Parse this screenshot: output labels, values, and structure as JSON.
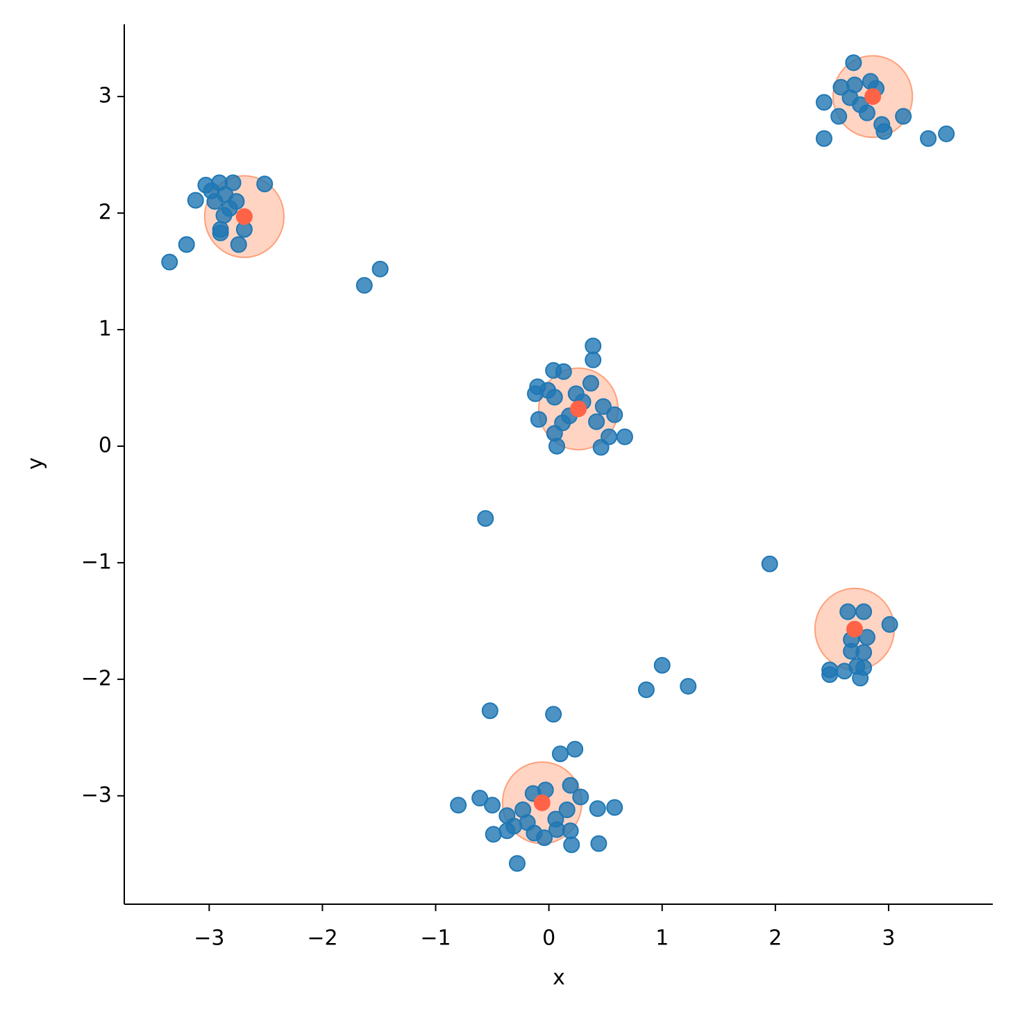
{
  "chart_data": {
    "type": "scatter",
    "xlabel": "x",
    "ylabel": "y",
    "xlim": [
      -3.75,
      3.92
    ],
    "ylim": [
      -3.93,
      3.62
    ],
    "xticks": [
      {
        "value": -3,
        "label": "−3"
      },
      {
        "value": -2,
        "label": "−2"
      },
      {
        "value": -1,
        "label": "−1"
      },
      0,
      1,
      2,
      3
    ],
    "yticks": [
      {
        "value": -3,
        "label": "−3"
      },
      {
        "value": -2,
        "label": "−2"
      },
      {
        "value": -1,
        "label": "−1"
      },
      0,
      1,
      2,
      3
    ],
    "series": [
      {
        "color": "#1f77b4",
        "x": [
          -3.35,
          -3.2,
          -3.12,
          -3.03,
          -2.91,
          -2.79,
          -2.51,
          -2.95,
          -2.86,
          -2.9,
          -2.9,
          -2.74,
          -2.69,
          -2.82,
          -2.76,
          -2.87,
          -2.98,
          -1.63,
          -1.49,
          -0.56,
          1.95,
          1.0,
          0.86,
          1.23,
          2.69,
          2.43,
          2.43,
          2.56,
          2.58,
          2.7,
          2.84,
          2.89,
          2.75,
          2.81,
          2.94,
          2.96,
          3.13,
          3.35,
          3.51,
          2.66,
          0.39,
          0.39,
          0.04,
          0.13,
          0.37,
          -0.1,
          -0.12,
          -0.01,
          0.05,
          0.24,
          -0.09,
          0.48,
          0.58,
          0.42,
          0.12,
          0.18,
          0.05,
          0.53,
          0.67,
          0.07,
          0.46,
          0.3,
          2.64,
          2.78,
          3.01,
          2.67,
          2.81,
          2.67,
          2.78,
          2.48,
          2.48,
          2.61,
          2.78,
          2.75,
          2.72,
          0.04,
          -0.52,
          0.23,
          0.1,
          -0.8,
          -0.61,
          -0.5,
          -0.14,
          -0.03,
          0.19,
          0.28,
          0.43,
          0.58,
          0.16,
          -0.37,
          -0.23,
          -0.31,
          -0.49,
          -0.37,
          -0.13,
          -0.04,
          0.07,
          0.19,
          0.2,
          0.44,
          -0.28,
          0.06,
          -0.19
        ],
        "y": [
          1.58,
          1.73,
          2.11,
          2.24,
          2.26,
          2.26,
          2.25,
          2.1,
          2.16,
          1.86,
          1.83,
          1.73,
          1.86,
          2.04,
          2.1,
          1.98,
          2.19,
          1.38,
          1.52,
          -0.62,
          -1.01,
          -1.88,
          -2.09,
          -2.06,
          3.29,
          2.95,
          2.64,
          2.83,
          3.08,
          3.1,
          3.13,
          3.07,
          2.93,
          2.86,
          2.76,
          2.7,
          2.83,
          2.64,
          2.68,
          2.99,
          0.86,
          0.74,
          0.65,
          0.64,
          0.54,
          0.51,
          0.45,
          0.48,
          0.42,
          0.45,
          0.23,
          0.34,
          0.27,
          0.21,
          0.2,
          0.26,
          0.11,
          0.08,
          0.08,
          0.0,
          -0.01,
          0.38,
          -1.42,
          -1.42,
          -1.53,
          -1.66,
          -1.64,
          -1.76,
          -1.77,
          -1.92,
          -1.96,
          -1.93,
          -1.9,
          -1.99,
          -1.89,
          -2.3,
          -2.27,
          -2.6,
          -2.64,
          -3.08,
          -3.02,
          -3.08,
          -2.98,
          -2.95,
          -2.91,
          -3.01,
          -3.11,
          -3.1,
          -3.12,
          -3.17,
          -3.12,
          -3.26,
          -3.33,
          -3.3,
          -3.32,
          -3.36,
          -3.29,
          -3.3,
          -3.42,
          -3.41,
          -3.58,
          -3.2,
          -3.23
        ]
      },
      {
        "color": "#ff6347",
        "circle_color": "#ffa07a",
        "radius": 0.35,
        "x": [
          -2.69,
          2.86,
          0.26,
          2.7,
          -0.06
        ],
        "y": [
          1.97,
          3.0,
          0.32,
          -1.57,
          -3.06
        ]
      }
    ]
  }
}
